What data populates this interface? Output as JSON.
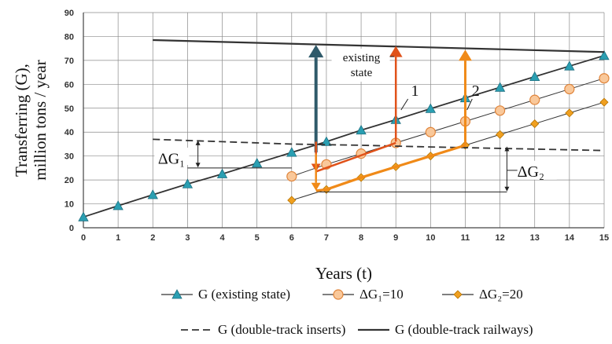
{
  "chart_data": {
    "type": "line",
    "xlabel": "Years (t)",
    "ylabel": [
      "Transferring (G),",
      "million tons / year"
    ],
    "xlim": [
      0,
      15
    ],
    "ylim": [
      0,
      90
    ],
    "x_ticks": [
      "0",
      "1",
      "2",
      "3",
      "4",
      "5",
      "6",
      "7",
      "8",
      "9",
      "10",
      "11",
      "12",
      "13",
      "14",
      "15"
    ],
    "y_ticks": [
      "0",
      "10",
      "20",
      "30",
      "40",
      "50",
      "60",
      "70",
      "80",
      "90"
    ],
    "grid": true,
    "series": [
      {
        "name": "G (existing state)",
        "legend_label": "G (existing state)",
        "color": "#2a9fb2",
        "marker": "triangle",
        "x": [
          0,
          1,
          2,
          3,
          4,
          5,
          6,
          7,
          8,
          9,
          10,
          11,
          12,
          13,
          14,
          15
        ],
        "y": [
          4.5,
          9.2,
          13.8,
          18.3,
          22.5,
          27,
          31.5,
          36,
          40.8,
          45.2,
          49.8,
          54.3,
          58.7,
          63.2,
          67.6,
          72
        ]
      },
      {
        "name": "ΔG1=10",
        "legend_label": "ΔG₁=10",
        "color": "#f5a25a",
        "marker": "circle",
        "x": [
          6,
          7,
          8,
          9,
          10,
          11,
          12,
          13,
          14,
          15
        ],
        "y": [
          21.5,
          26.5,
          31,
          35.5,
          40,
          44.5,
          49,
          53.5,
          58,
          62.5
        ]
      },
      {
        "name": "ΔG2=20",
        "legend_label": "ΔG₂=20",
        "color": "#f0a020",
        "marker": "diamond",
        "x": [
          6,
          7,
          8,
          9,
          10,
          11,
          12,
          13,
          14,
          15
        ],
        "y": [
          11.5,
          16,
          21,
          25.5,
          30,
          34.5,
          39,
          43.5,
          48,
          52.5
        ]
      },
      {
        "name": "G (double-track inserts)",
        "legend_label": "G (double-track inserts)",
        "color": "#333333",
        "dash": true,
        "x": [
          2,
          4,
          6,
          8,
          10,
          12,
          14,
          15
        ],
        "y": [
          37,
          36,
          35,
          34.5,
          33.8,
          33.2,
          32.6,
          32.3
        ]
      },
      {
        "name": "G (double-track railways)",
        "legend_label": "G (double-track railways)",
        "color": "#333333",
        "x": [
          2,
          15
        ],
        "y": [
          78.5,
          73.5
        ]
      }
    ],
    "annotations": {
      "existing_state": [
        "existing",
        "state"
      ],
      "label_1": "1",
      "label_2": "2",
      "delta_g1": "ΔG₁",
      "delta_g2": "ΔG₂"
    }
  }
}
